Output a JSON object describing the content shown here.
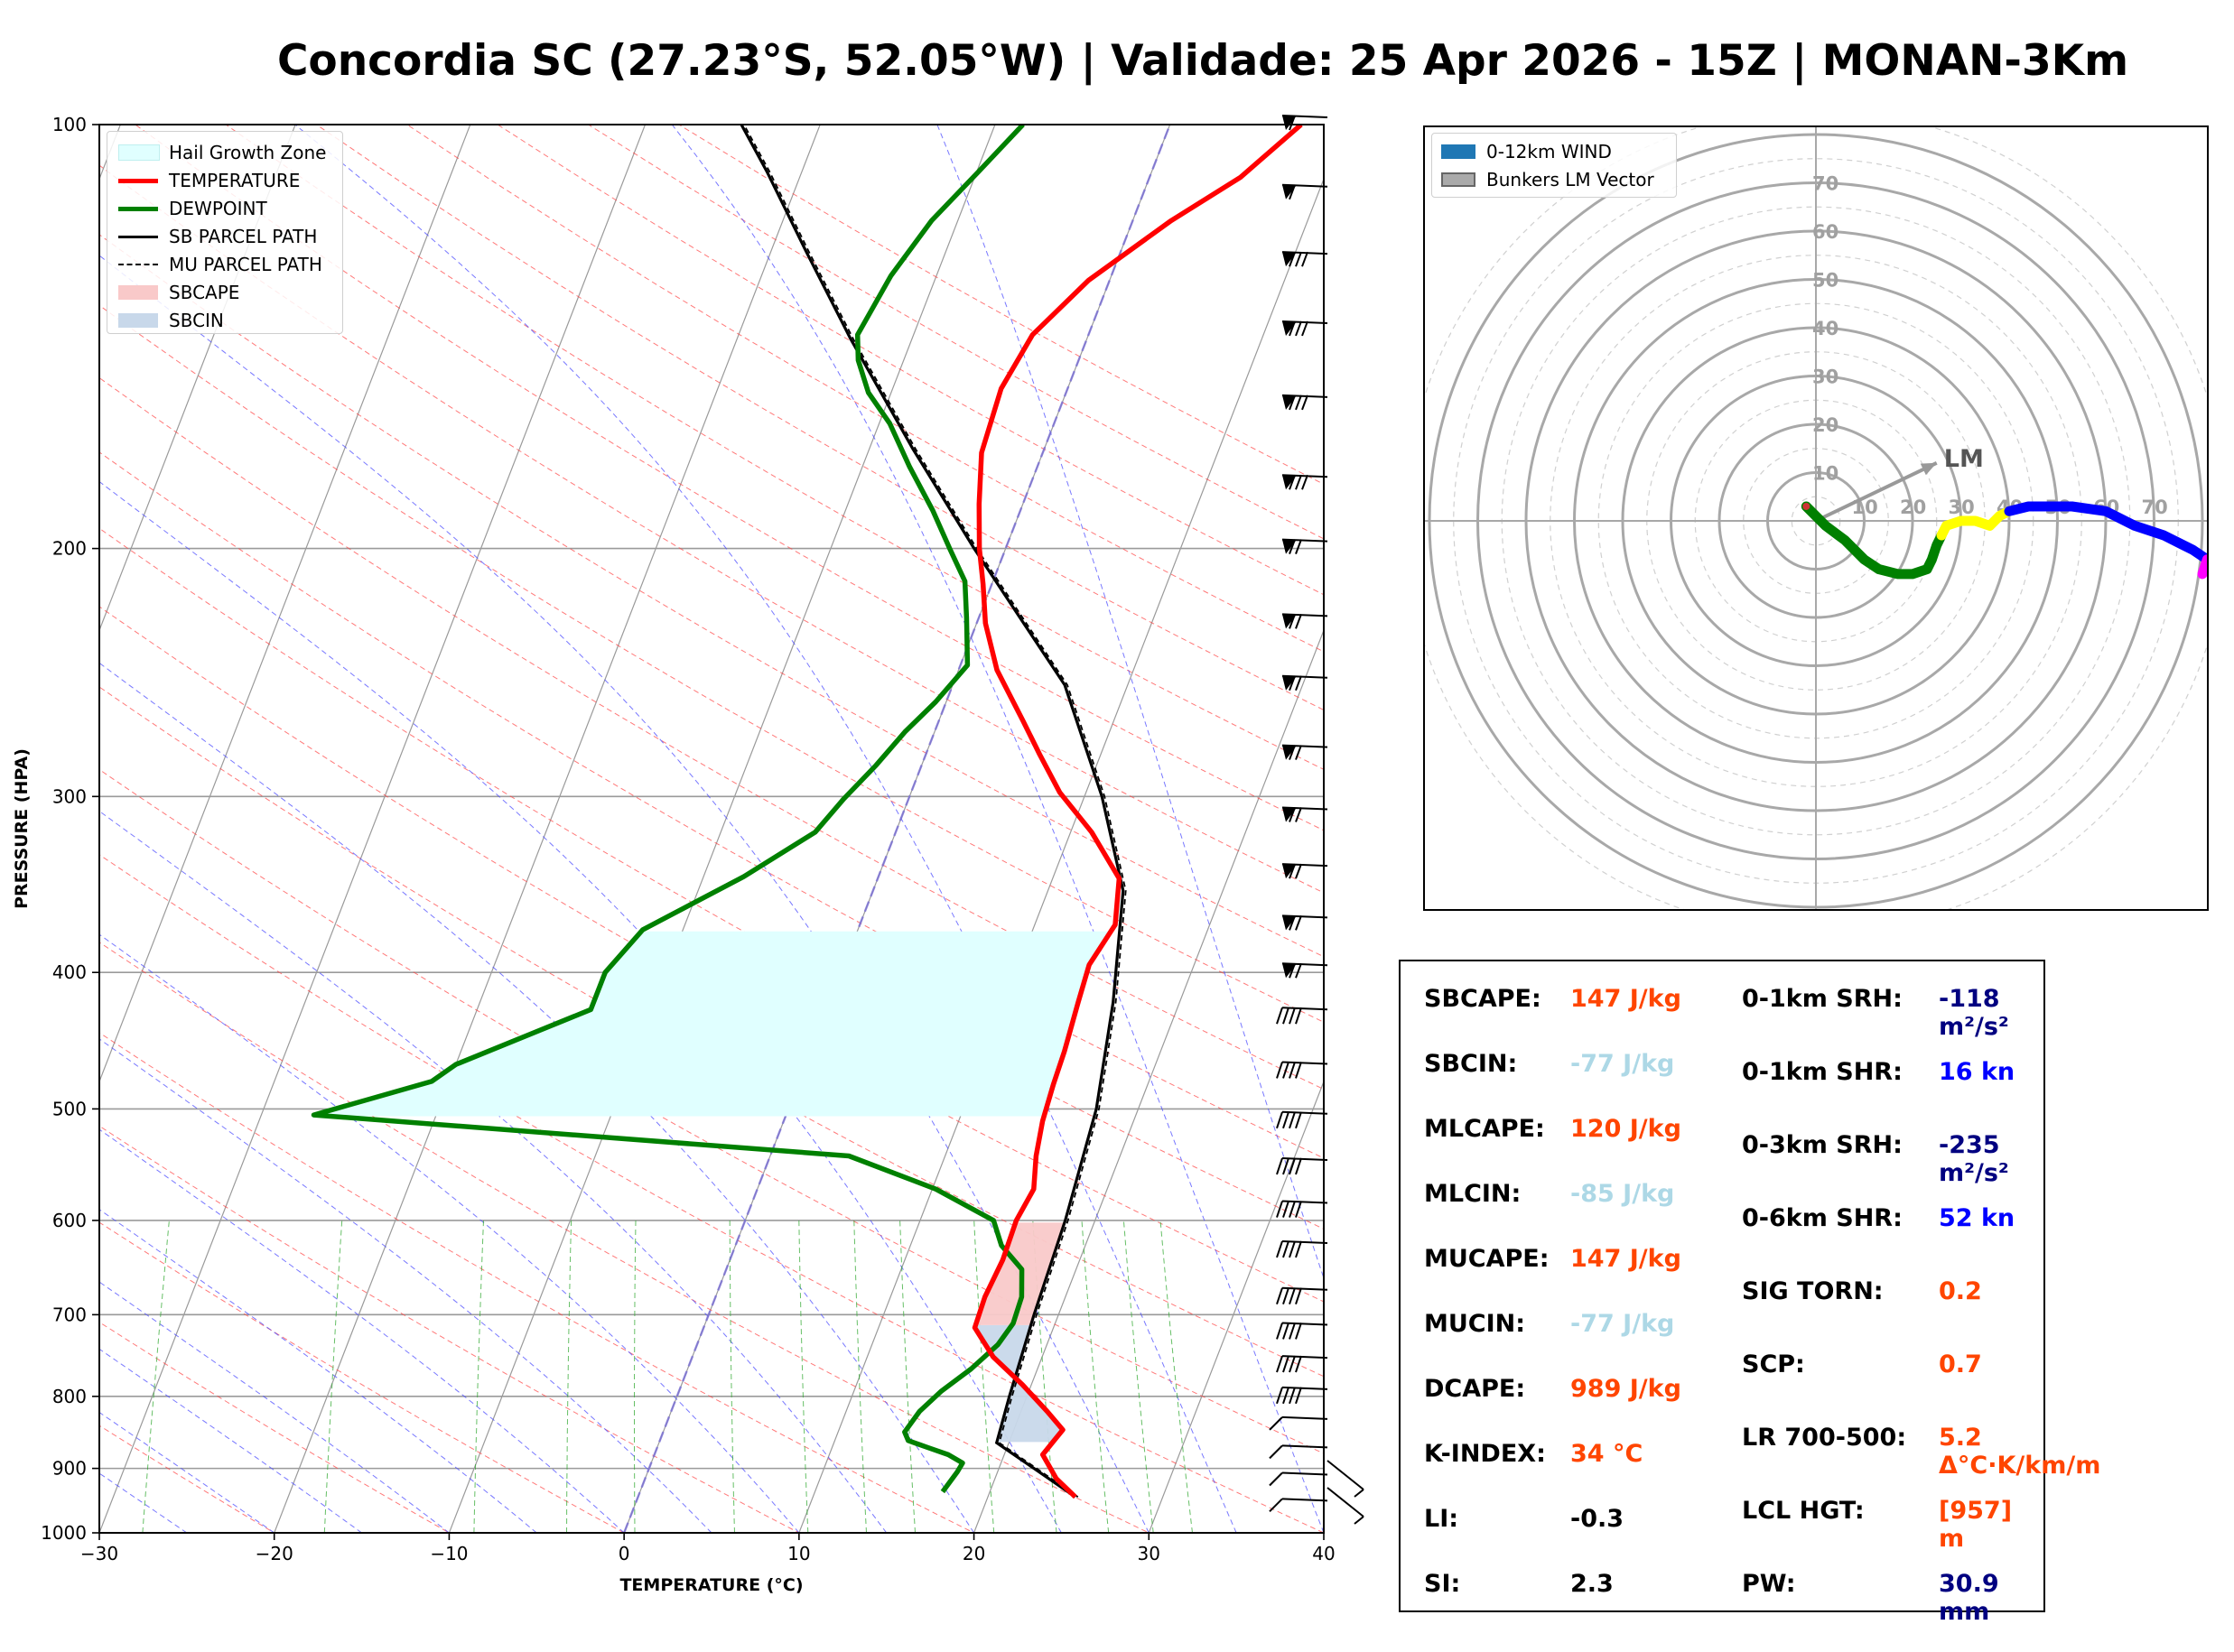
{
  "title": "Concordia SC (27.23°S, 52.05°W) | Validade: 25 Apr 2026 - 15Z | MONAN-3Km",
  "skewt": {
    "xlabel": "TEMPERATURE (°C)",
    "ylabel": "PRESSURE (HPA)",
    "x_ticks": [
      "−30",
      "−20",
      "−10",
      "0",
      "10",
      "20",
      "30",
      "40"
    ],
    "y_ticks": [
      "100",
      "200",
      "300",
      "400",
      "500",
      "600",
      "700",
      "800",
      "900",
      "1000"
    ],
    "legend": {
      "hail": "Hail Growth Zone",
      "temperature": "TEMPERATURE",
      "dewpoint": "DEWPOINT",
      "sb_parcel": "SB PARCEL PATH",
      "mu_parcel": "MU PARCEL PATH",
      "sbcape": "SBCAPE",
      "sbcin": "SBCIN"
    },
    "colors": {
      "temperature": "#ff0000",
      "dewpoint": "#008000",
      "parcel": "#000000",
      "hail": "#e0ffff",
      "sbcape": "#f9c9c9",
      "sbcin": "#c8d8ea"
    }
  },
  "hodograph": {
    "legend": {
      "wind": "0-12km WIND",
      "bunkers": "Bunkers LM Vector"
    },
    "ring_labels": [
      "10",
      "20",
      "30",
      "40",
      "50",
      "60",
      "70"
    ],
    "axis_labels": [
      "10",
      "20",
      "30",
      "40",
      "50",
      "60",
      "70"
    ],
    "lm_label": "LM"
  },
  "stats": {
    "sbcape": {
      "label": "SBCAPE:",
      "value": "147 J/kg",
      "color": "#ff4500"
    },
    "sbcin": {
      "label": "SBCIN:",
      "value": "-77 J/kg",
      "color": "#add8e6"
    },
    "mlcape": {
      "label": "MLCAPE:",
      "value": "120 J/kg",
      "color": "#ff4500"
    },
    "mlcin": {
      "label": "MLCIN:",
      "value": "-85 J/kg",
      "color": "#add8e6"
    },
    "mucape": {
      "label": "MUCAPE:",
      "value": "147 J/kg",
      "color": "#ff4500"
    },
    "mucin": {
      "label": "MUCIN:",
      "value": "-77 J/kg",
      "color": "#add8e6"
    },
    "dcape": {
      "label": "DCAPE:",
      "value": "989 J/kg",
      "color": "#ff4500"
    },
    "kindex": {
      "label": "K-INDEX:",
      "value": "34 °C",
      "color": "#ff4500"
    },
    "li": {
      "label": "LI:",
      "value": "-0.3",
      "color": "#000000"
    },
    "si": {
      "label": "SI:",
      "value": "2.3",
      "color": "#000000"
    },
    "srh01": {
      "label": "0-1km SRH:",
      "value": "-118 m²/s²",
      "color": "#000080"
    },
    "shr01": {
      "label": "0-1km SHR:",
      "value": "16 kn",
      "color": "#0000ff"
    },
    "srh03": {
      "label": "0-3km SRH:",
      "value": "-235 m²/s²",
      "color": "#000080"
    },
    "shr06": {
      "label": "0-6km SHR:",
      "value": "52 kn",
      "color": "#0000ff"
    },
    "sigtorn": {
      "label": "SIG TORN:",
      "value": "0.2",
      "color": "#ff4500"
    },
    "scp": {
      "label": "SCP:",
      "value": "0.7",
      "color": "#ff4500"
    },
    "lr": {
      "label": "LR 700-500:",
      "value": "5.2 Δ°C·K/km/m",
      "color": "#ff4500"
    },
    "lcl": {
      "label": "LCL HGT:",
      "value": "[957] m",
      "color": "#ff4500"
    },
    "pw": {
      "label": "PW:",
      "value": "30.9 mm",
      "color": "#000080"
    }
  },
  "chart_data": [
    {
      "type": "line",
      "subtype": "skew-t log-p",
      "xlabel": "TEMPERATURE (°C)",
      "ylabel": "PRESSURE (HPA)",
      "xlim": [
        -30,
        40
      ],
      "ylim": [
        1000,
        100
      ],
      "y_scale": "log",
      "series": [
        {
          "name": "TEMPERATURE",
          "points": [
            [
              25,
              943
            ],
            [
              23.5,
              915
            ],
            [
              22.2,
              880
            ],
            [
              22.5,
              862
            ],
            [
              22.8,
              845
            ],
            [
              21.5,
              820
            ],
            [
              19.5,
              785
            ],
            [
              17.2,
              750
            ],
            [
              15.5,
              715
            ],
            [
              15.4,
              680
            ],
            [
              15.6,
              640
            ],
            [
              15.5,
              600
            ],
            [
              15.8,
              570
            ],
            [
              15.2,
              540
            ],
            [
              14.8,
              510
            ],
            [
              14.6,
              480
            ],
            [
              14.5,
              455
            ],
            [
              14.2,
              420
            ],
            [
              14.0,
              395
            ],
            [
              14.6,
              370
            ],
            [
              13.8,
              343
            ],
            [
              11.2,
              318
            ],
            [
              8.5,
              298
            ],
            [
              6.5,
              280
            ],
            [
              4.8,
              265
            ],
            [
              2.2,
              244
            ],
            [
              0.5,
              226
            ],
            [
              -0.5,
              212
            ],
            [
              -1.5,
              200
            ],
            [
              -2.5,
              186
            ],
            [
              -3.5,
              171
            ],
            [
              -3.8,
              154
            ],
            [
              -3.2,
              141
            ],
            [
              -1.2,
              129
            ],
            [
              2.2,
              117
            ],
            [
              5.2,
              109
            ],
            [
              7.5,
              100
            ]
          ]
        },
        {
          "name": "DEWPOINT",
          "points": [
            [
              17.3,
              935
            ],
            [
              17.7,
              905
            ],
            [
              17.8,
              892
            ],
            [
              16.8,
              880
            ],
            [
              15.5,
              870
            ],
            [
              14.2,
              860
            ],
            [
              13.8,
              848
            ],
            [
              14.2,
              820
            ],
            [
              15.0,
              793
            ],
            [
              16.2,
              765
            ],
            [
              17.2,
              735
            ],
            [
              17.6,
              710
            ],
            [
              17.5,
              680
            ],
            [
              16.9,
              650
            ],
            [
              15.2,
              625
            ],
            [
              14.2,
              600
            ],
            [
              10.2,
              570
            ],
            [
              4.5,
              540
            ],
            [
              -27,
              505
            ],
            [
              -21,
              478
            ],
            [
              -20,
              465
            ],
            [
              -13.5,
              425
            ],
            [
              -13.5,
              400
            ],
            [
              -12.3,
              373
            ],
            [
              -7.7,
              342
            ],
            [
              -4.6,
              318
            ],
            [
              -3.7,
              301
            ],
            [
              -2.6,
              285
            ],
            [
              -1.7,
              270
            ],
            [
              -0.6,
              257
            ],
            [
              0.4,
              242
            ],
            [
              -0.7,
              224
            ],
            [
              -1.6,
              211
            ],
            [
              -3.2,
              200
            ],
            [
              -5.0,
              188
            ],
            [
              -7.3,
              175
            ],
            [
              -9.4,
              163
            ],
            [
              -11.3,
              155
            ],
            [
              -12.6,
              147
            ],
            [
              -13.2,
              141
            ],
            [
              -12.6,
              128
            ],
            [
              -11.5,
              117
            ],
            [
              -9.9,
              108
            ],
            [
              -8.4,
              100
            ]
          ]
        },
        {
          "name": "SB PARCEL PATH",
          "points": [
            [
              25,
              943
            ],
            [
              22,
              900
            ],
            [
              19.3,
              863
            ],
            [
              19.0,
              800
            ],
            [
              18.6,
              700
            ],
            [
              18.3,
              600
            ],
            [
              17.6,
              500
            ],
            [
              16.2,
              420
            ],
            [
              14.3,
              350
            ],
            [
              11.0,
              300
            ],
            [
              6.4,
              250
            ],
            [
              1.7,
              220
            ],
            [
              -1.8,
              200
            ],
            [
              -7.5,
              170
            ],
            [
              -13.5,
              142
            ],
            [
              -18.0,
              123
            ],
            [
              -22.0,
              108
            ],
            [
              -24.5,
              100
            ]
          ]
        }
      ]
    },
    {
      "type": "line",
      "subtype": "hodograph",
      "rings_kn": [
        10,
        20,
        30,
        40,
        50,
        60,
        70,
        80
      ],
      "series": [
        {
          "name": "0-12km WIND",
          "segments": [
            {
              "color": "#008000",
              "points": [
                [
                  -2,
                  3
                ],
                [
                  2,
                  -1
                ],
                [
                  6,
                  -4
                ],
                [
                  10,
                  -8
                ],
                [
                  13,
                  -10
                ],
                [
                  17,
                  -11
                ],
                [
                  20,
                  -11
                ],
                [
                  23,
                  -10
                ],
                [
                  24,
                  -8
                ],
                [
                  25,
                  -5
                ],
                [
                  26,
                  -3
                ]
              ]
            },
            {
              "color": "#ffff00",
              "points": [
                [
                  26,
                  -3
                ],
                [
                  27,
                  -1
                ],
                [
                  30,
                  0
                ],
                [
                  33,
                  0
                ],
                [
                  36,
                  -1
                ],
                [
                  38,
                  1
                ],
                [
                  40,
                  2
                ]
              ]
            },
            {
              "color": "#0000ff",
              "points": [
                [
                  40,
                  2
                ],
                [
                  44,
                  3
                ],
                [
                  48,
                  3
                ],
                [
                  53,
                  3
                ],
                [
                  60,
                  2
                ],
                [
                  66,
                  -1
                ],
                [
                  72,
                  -3
                ],
                [
                  78,
                  -6
                ],
                [
                  81,
                  -8
                ]
              ]
            },
            {
              "color": "#ff00ff",
              "points": [
                [
                  81,
                  -8
                ],
                [
                  80,
                  -11
                ]
              ]
            }
          ]
        },
        {
          "name": "Bunkers LM Vector",
          "u": 25,
          "v": 12
        }
      ]
    }
  ]
}
